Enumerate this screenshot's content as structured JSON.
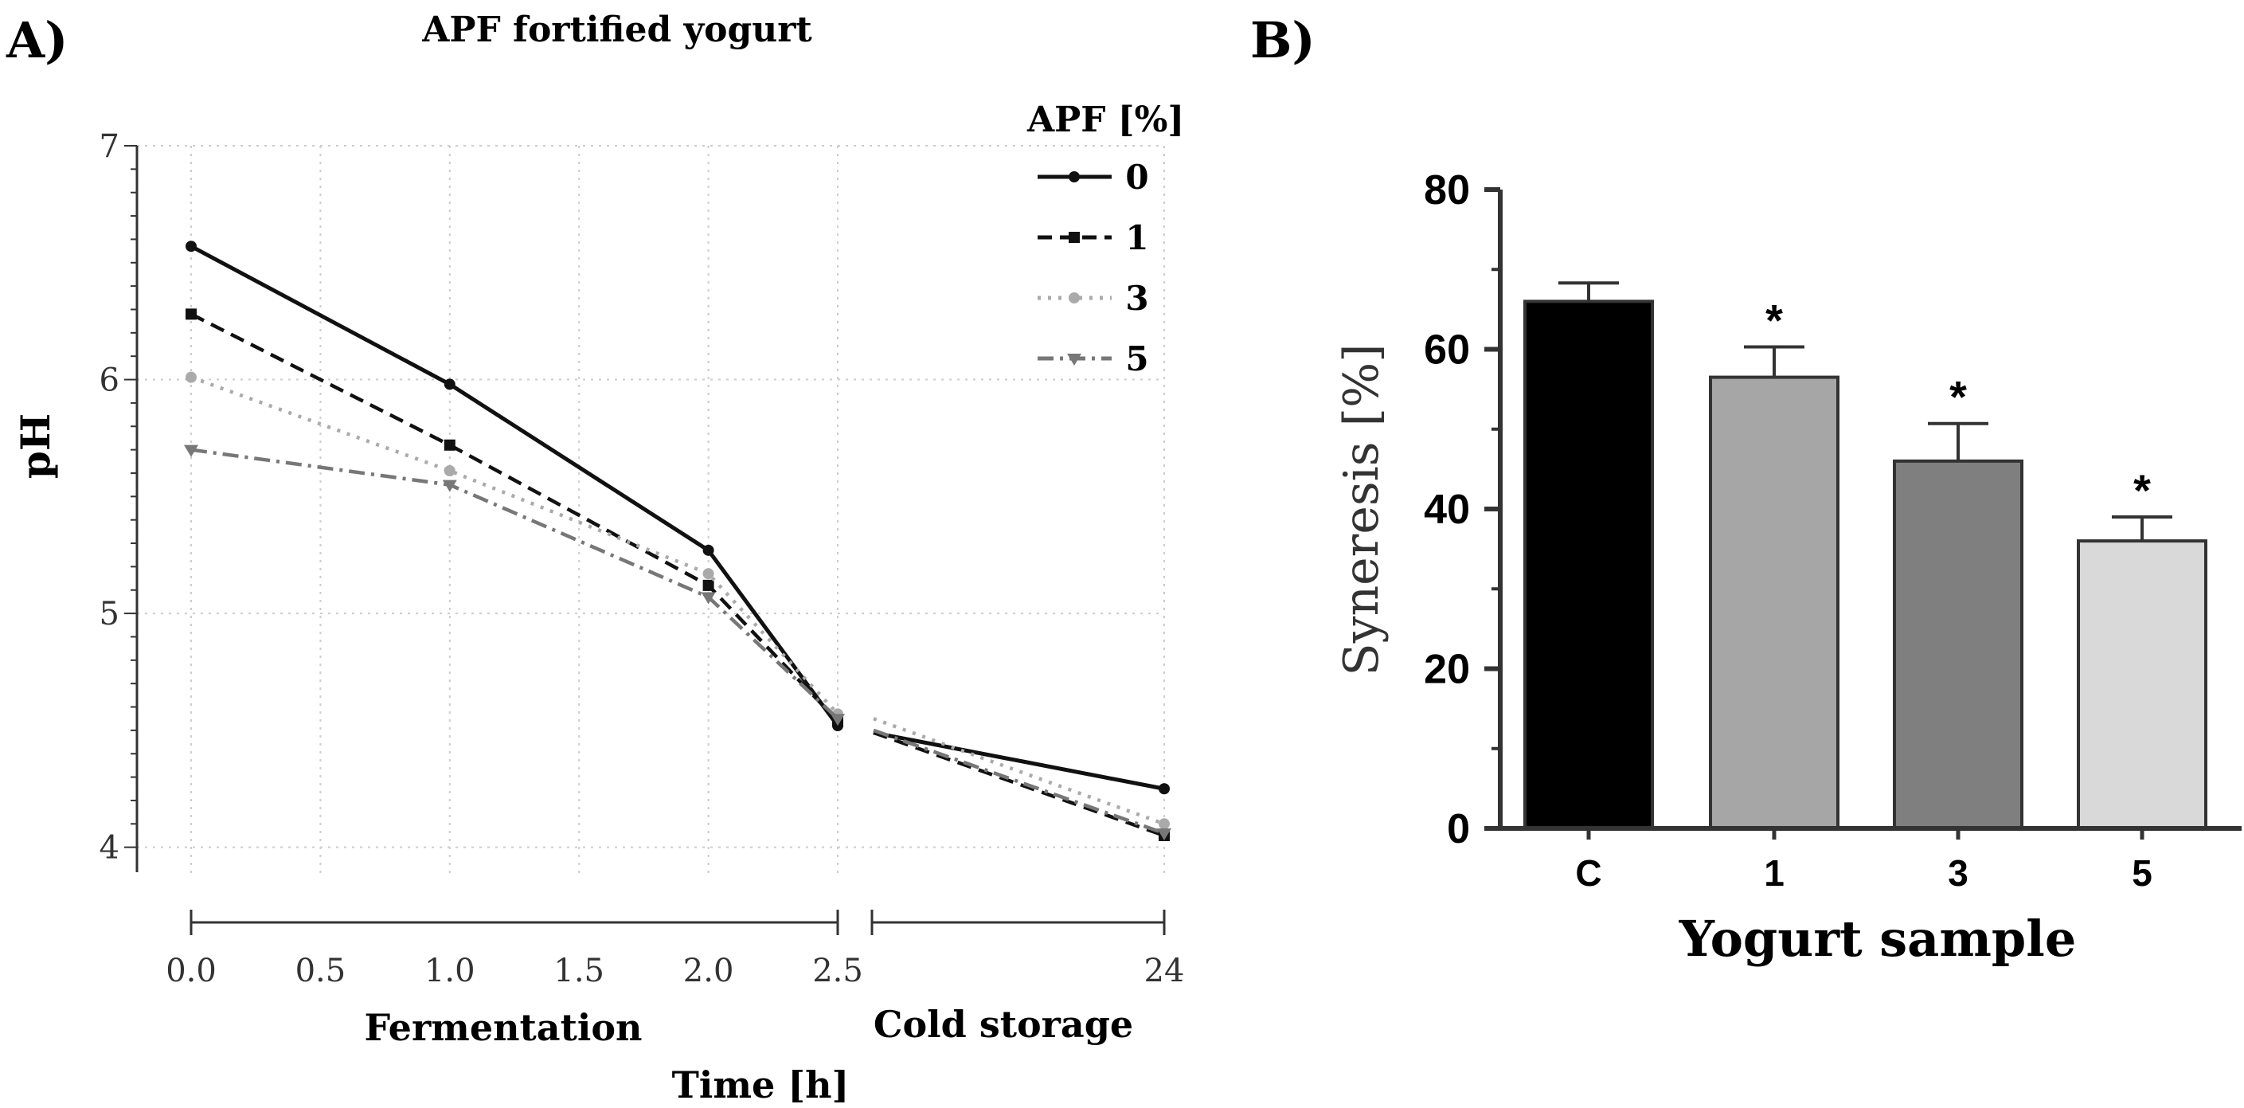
{
  "panel_a_label": "A)",
  "panel_b_label": "B)",
  "chart_data": [
    {
      "type": "line",
      "title": "APF fortified yogurt",
      "xlabel": "Time [h]",
      "ylabel": "pH",
      "segments": [
        "Fermentation",
        "Cold storage"
      ],
      "x": [
        0.0,
        1.0,
        2.0,
        2.5,
        24
      ],
      "x_tick_labels": [
        "0.0",
        "0.5",
        "1.0",
        "1.5",
        "2.0",
        "2.5",
        "24"
      ],
      "ylim": [
        3.9,
        7
      ],
      "y_ticks": [
        "4",
        "5",
        "6",
        "7"
      ],
      "grid": true,
      "legend_title": "APF [%]",
      "legend_position": "top-right",
      "series": [
        {
          "name": "0",
          "values": [
            6.57,
            5.98,
            5.27,
            4.52,
            4.25
          ],
          "storage_start": 4.49,
          "color": "#111111",
          "dash": "solid",
          "marker": "circle"
        },
        {
          "name": "1",
          "values": [
            6.28,
            5.72,
            5.12,
            4.54,
            4.05
          ],
          "storage_start": 4.49,
          "color": "#111111",
          "dash": "dashed",
          "marker": "square"
        },
        {
          "name": "3",
          "values": [
            6.01,
            5.61,
            5.17,
            4.57,
            4.1
          ],
          "storage_start": 4.55,
          "color": "#aaaaaa",
          "dash": "dotted",
          "marker": "circle"
        },
        {
          "name": "5",
          "values": [
            5.7,
            5.55,
            5.07,
            4.55,
            4.06
          ],
          "storage_start": 4.5,
          "color": "#777777",
          "dash": "dashdot",
          "marker": "triangle-down"
        }
      ]
    },
    {
      "type": "bar",
      "title": "",
      "xlabel": "Yogurt sample",
      "ylabel": "Syneresis  [%]",
      "categories": [
        "C",
        "1",
        "3",
        "5"
      ],
      "values": [
        66,
        56.5,
        46,
        36
      ],
      "errors": [
        2.3,
        3.8,
        4.7,
        3.0
      ],
      "significance": [
        "",
        "*",
        "*",
        "*"
      ],
      "colors": [
        "#000000",
        "#a6a6a6",
        "#7f7f7f",
        "#d9d9d9"
      ],
      "ylim": [
        0,
        80
      ],
      "y_ticks": [
        "0",
        "20",
        "40",
        "60",
        "80"
      ]
    }
  ]
}
